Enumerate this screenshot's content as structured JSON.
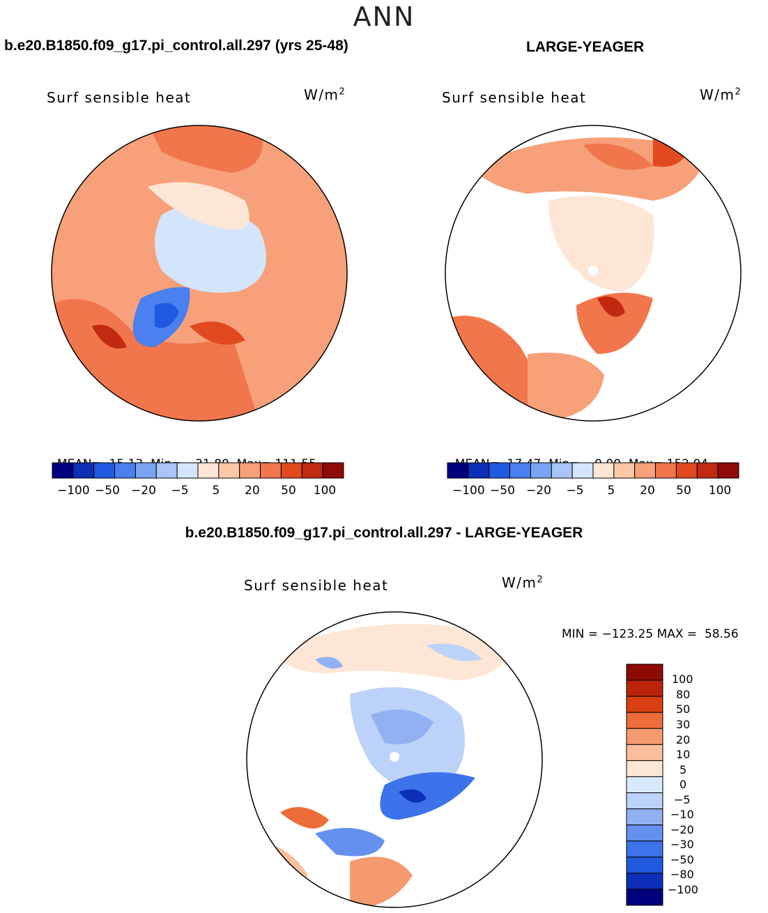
{
  "title": "ANN",
  "colors": {
    "diverging": [
      "#00007f",
      "#0d2fb8",
      "#1f5ae0",
      "#4a80f0",
      "#7aa3f2",
      "#a9c4f7",
      "#d3e5fa",
      "#fde6d6",
      "#fcc7a6",
      "#f7a07a",
      "#f2764c",
      "#e04a1e",
      "#c12a10",
      "#8e0b06"
    ],
    "diff": [
      "#00007f",
      "#0d2fb8",
      "#1f5ae0",
      "#3c72ea",
      "#6590ef",
      "#92b1f3",
      "#bdd2f8",
      "#d9e9fc",
      "#fde6d6",
      "#fbbf9c",
      "#f49a6e",
      "#ec6c3a",
      "#dc3f12",
      "#bb2408",
      "#8e0b06"
    ]
  },
  "panels": [
    {
      "header": "b.e20.B1850.f09_g17.pi_control.all.297 (yrs 25-48)",
      "variable": "Surf sensible heat",
      "units": "W/m",
      "units_sup": "2",
      "stats": {
        "mean_label": "MEAN=",
        "mean": "15.13",
        "min_label": "Min=",
        "min": "−31.80",
        "max_label": "Max=",
        "max": "111.55"
      },
      "colorbar_ticks": [
        "−100",
        "−50",
        "−20",
        "−5",
        "5",
        "20",
        "50",
        "100"
      ]
    },
    {
      "header": "LARGE-YEAGER",
      "variable": "Surf sensible heat",
      "units": "W/m",
      "units_sup": "2",
      "stats": {
        "mean_label": "MEAN=",
        "mean": "17.47",
        "min_label": "Min=",
        "min": "0.00",
        "max_label": "Max=",
        "max": "152.04"
      },
      "colorbar_ticks": [
        "−100",
        "−50",
        "−20",
        "−5",
        "5",
        "20",
        "50",
        "100"
      ]
    }
  ],
  "difference": {
    "header": "b.e20.B1850.f09_g17.pi_control.all.297 - LARGE-YEAGER",
    "variable": "Surf sensible heat",
    "units": "W/m",
    "units_sup": "2",
    "minmax": "MIN = −123.25 MAX =  58.56",
    "colorbar_ticks": [
      "100",
      "80",
      "50",
      "30",
      "20",
      "10",
      "5",
      "0",
      "−5",
      "−10",
      "−20",
      "−30",
      "−50",
      "−80",
      "−100"
    ]
  }
}
